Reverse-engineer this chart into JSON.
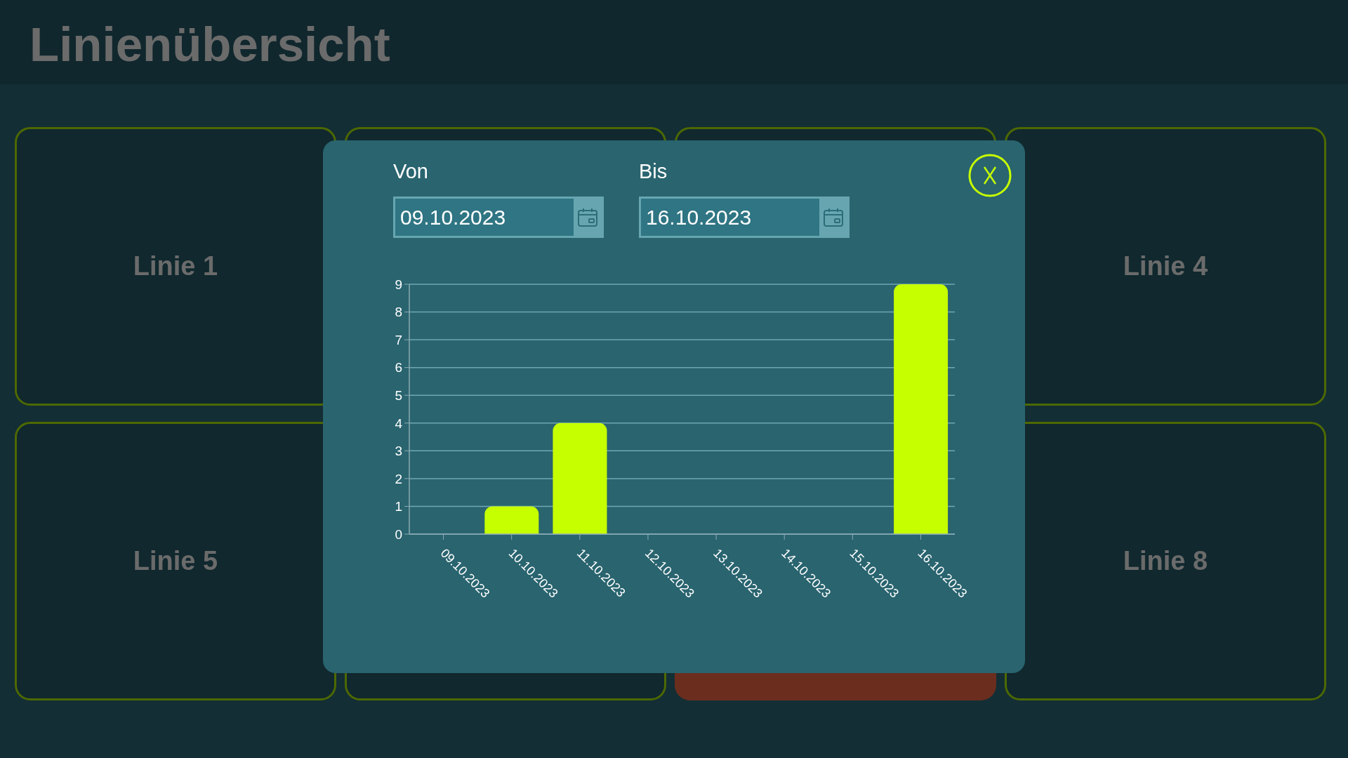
{
  "chart_data": {
    "type": "bar",
    "title": "Linienübersicht",
    "categories": [
      "09.10.2023",
      "10.10.2023",
      "11.10.2023",
      "12.10.2023",
      "13.10.2023",
      "14.10.2023",
      "15.10.2023",
      "16.10.2023"
    ],
    "values": [
      0,
      1,
      4,
      0,
      0,
      0,
      0,
      9
    ],
    "color": "#c6ff00",
    "ylim": [
      0,
      9
    ],
    "yticks": [
      0,
      1,
      2,
      3,
      4,
      5,
      6,
      7,
      8,
      9
    ],
    "grid": "y",
    "annotations": [
      "Von",
      "09.10.2023",
      "Bis",
      "16.10.2023",
      "Linie 1",
      "Linie 4",
      "Linie 5",
      "Linie 8"
    ]
  }
}
